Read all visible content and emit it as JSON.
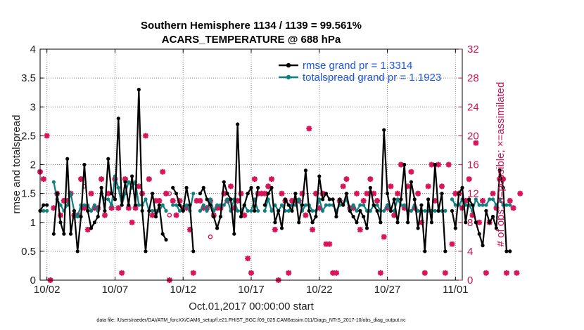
{
  "chart_data": {
    "type": "line",
    "title_line1": "Southern Hemisphere 1134 / 1139 = 99.561%",
    "title_line2": "ACARS_TEMPERATURE @ 688 hPa",
    "ylabel": "rmse and totalspread",
    "ylabel_right": "# of obs: o=possible; ×=assimilated",
    "xlabel": "Oct.01,2017 00:00:00 start",
    "footnote": "data file: /Users/raeder/DAI/ATM_forcXX/CAM6_setup/f.e21.FHIST_BGC.f09_025.CAM6assim.011/Diags_NTrS_2017-10/obs_diag_output.nc",
    "x_range_days": [
      0.5,
      31.5
    ],
    "ylim": [
      0,
      4
    ],
    "ylim_right": [
      0,
      32
    ],
    "x_tick_positions_days": [
      1,
      6,
      11,
      16,
      21,
      26,
      31
    ],
    "x_tick_labels": [
      "10/02",
      "10/07",
      "10/12",
      "10/17",
      "10/22",
      "10/27",
      "11/01"
    ],
    "y_tick_labels": [
      "0",
      "0.5",
      "1",
      "1.5",
      "2",
      "2.5",
      "3",
      "3.5",
      "4"
    ],
    "y_right_tick_labels": [
      "0",
      "4",
      "8",
      "12",
      "16",
      "20",
      "24",
      "28",
      "32"
    ],
    "x_step_days": 0.25,
    "x_start_day": 0.5,
    "colors": {
      "rmse": "#000000",
      "spread": "#0f7f7f",
      "obs": "#d8145a",
      "legend_text": "#1a56e8"
    },
    "legend": {
      "rmse_label": "rmse grand pr = 1.3314",
      "spread_label": "totalspread grand pr = 1.1923"
    },
    "series": [
      {
        "name": "rmse",
        "values": [
          1.2,
          1.3,
          1.3,
          null,
          0.8,
          1.5,
          1.0,
          0.8,
          2.1,
          0.8,
          1.2,
          0.5,
          1.1,
          2.0,
          1.2,
          0.9,
          1.0,
          1.1,
          1.6,
          1.2,
          2.1,
          1.5,
          1.4,
          2.8,
          1.3,
          1.7,
          1.3,
          1.8,
          1.3,
          3.3,
          1.2,
          0.5,
          1.2,
          1.5,
          1.1,
          1.3,
          0.8,
          0.7,
          null,
          1.6,
          1.5,
          1.3,
          1.2,
          1.6,
          1.3,
          0.5,
          null,
          1.5,
          1.6,
          1.4,
          1.3,
          1.1,
          0.9,
          1.1,
          1.7,
          1.5,
          1.4,
          0.8,
          2.7,
          1.1,
          1.3,
          1.5,
          1.6,
          1.2,
          1.6,
          null,
          1.3,
          1.5,
          1.6,
          1.0,
          1.2,
          0.9,
          1.4,
          1.3,
          1.2,
          1.5,
          1.0,
          1.3,
          1.9,
          1.2,
          1.0,
          1.1,
          1.8,
          1.4,
          1.5,
          1.4,
          1.4,
          1.1,
          1.4,
          1.3,
          1.5,
          1.2,
          1.1,
          1.0,
          1.2,
          1.1,
          0.9,
          1.6,
          1.3,
          1.2,
          1.0,
          2.6,
          1.5,
          1.2,
          1.4,
          1.0,
          1.4,
          2.0,
          1.0,
          1.7,
          1.4,
          0.9,
          1.3,
          0.5,
          1.4,
          1.0,
          2.0,
          1.2,
          1.5,
          0.5,
          null,
          1.2,
          0.9,
          1.5,
          1.6,
          1.0,
          1.4,
          1.3,
          1.0,
          0.8,
          0.6,
          1.2,
          1.0,
          1.1,
          0.9,
          1.9,
          1.6,
          0.5,
          0.5
        ]
      },
      {
        "name": "totalspread",
        "values": [
          1.2,
          1.2,
          1.2,
          null,
          1.7,
          1.4,
          1.3,
          1.2,
          1.3,
          1.5,
          1.2,
          1.1,
          1.3,
          1.3,
          1.3,
          1.2,
          1.3,
          1.2,
          1.5,
          1.4,
          1.4,
          1.3,
          1.8,
          1.6,
          1.3,
          1.5,
          1.7,
          1.6,
          1.7,
          1.3,
          1.3,
          1.4,
          1.2,
          1.2,
          1.2,
          1.2,
          1.3,
          1.2,
          null,
          1.3,
          1.3,
          1.2,
          1.2,
          1.3,
          1.2,
          1.5,
          null,
          1.2,
          1.3,
          1.2,
          1.4,
          1.2,
          1.3,
          1.3,
          1.3,
          1.4,
          1.2,
          1.4,
          1.2,
          1.2,
          1.3,
          1.2,
          1.2,
          1.4,
          1.2,
          null,
          1.2,
          1.4,
          1.2,
          1.3,
          1.2,
          1.3,
          1.2,
          1.2,
          1.3,
          1.3,
          1.4,
          1.2,
          1.3,
          1.3,
          1.2,
          1.2,
          1.4,
          1.2,
          1.3,
          1.3,
          1.3,
          1.2,
          1.3,
          1.3,
          1.4,
          1.2,
          1.3,
          1.2,
          1.3,
          1.3,
          1.2,
          1.2,
          1.3,
          1.3,
          1.2,
          1.2,
          1.3,
          1.2,
          1.2,
          1.4,
          1.3,
          1.3,
          1.2,
          1.2,
          1.3,
          1.2,
          1.2,
          1.2,
          1.2,
          1.2,
          1.2,
          1.2,
          1.2,
          1.2,
          null,
          1.4,
          1.3,
          1.3,
          1.4,
          1.3,
          1.3,
          1.2,
          1.4,
          1.3,
          1.3,
          1.3,
          1.4,
          1.4,
          1.3,
          1.4,
          1.3,
          1.3,
          1.3
        ]
      },
      {
        "name": "obs_assimilated",
        "marker": "star",
        "values": [
          15,
          14,
          20,
          0,
          10,
          12,
          9,
          11,
          11,
          12,
          9,
          9,
          14,
          10,
          7,
          12,
          10,
          10,
          14,
          9,
          12,
          10,
          14,
          10,
          1,
          14,
          10,
          8,
          10,
          13,
          12,
          20,
          14,
          9,
          11,
          11,
          15,
          12,
          0,
          11,
          9,
          11,
          10,
          10,
          7,
          1,
          11,
          11,
          10,
          10,
          11,
          9,
          10,
          10,
          12,
          11,
          13,
          10,
          11,
          12,
          9,
          3,
          1,
          14,
          12,
          12,
          12,
          13,
          14,
          7,
          0,
          12,
          11,
          1,
          11,
          11,
          11,
          12,
          9,
          21,
          7,
          12,
          10,
          12,
          5,
          5,
          1,
          1,
          11,
          13,
          14,
          10,
          10,
          12,
          7,
          11,
          12,
          14,
          12,
          11,
          1,
          6,
          10,
          13,
          9,
          12,
          16,
          10,
          13,
          15,
          10,
          12,
          8,
          1,
          13,
          16,
          11,
          16,
          13,
          1,
          16,
          5,
          12,
          12,
          10,
          11,
          14,
          9,
          19,
          8,
          11,
          1,
          8,
          12,
          10,
          14,
          14,
          1,
          11,
          10,
          1,
          12
        ]
      },
      {
        "name": "obs_possible",
        "marker": "circle",
        "points": [
          {
            "x": 3.75,
            "y": 10
          },
          {
            "x": 3.75,
            "y": 13
          },
          {
            "x": 10.0,
            "y": 9
          },
          {
            "x": 10.0,
            "y": 12
          },
          {
            "x": 13.0,
            "y": 6
          }
        ]
      }
    ]
  }
}
